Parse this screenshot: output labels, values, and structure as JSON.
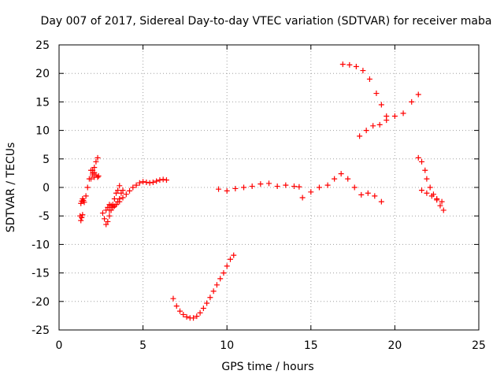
{
  "chart_data": {
    "type": "scatter",
    "title": "Day 007 of 2017, Sidereal Day-to-day VTEC variation (SDTVAR) for receiver maba",
    "xlabel": "GPS time / hours",
    "ylabel": "SDTVAR / TECUs",
    "xlim": [
      0,
      25
    ],
    "ylim": [
      -25,
      25
    ],
    "xticks": [
      "0",
      "5",
      "10",
      "15",
      "20",
      "25"
    ],
    "yticks": [
      "25",
      "20",
      "15",
      "10",
      "5",
      "0",
      "-5",
      "-10",
      "-15",
      "-20",
      "-25"
    ],
    "grid": true,
    "marker": "plus",
    "color": "#ff0000",
    "series": [
      {
        "x": [
          1.25,
          1.3,
          1.35,
          1.4
        ],
        "y": [
          -5.0,
          -5.8,
          -5.3,
          -4.8
        ]
      },
      {
        "x": [
          1.3,
          1.35,
          1.4,
          1.45,
          1.5
        ],
        "y": [
          -2.8,
          -2.4,
          -2.0,
          -2.3,
          -2.6
        ]
      },
      {
        "x": [
          1.6,
          1.7,
          1.8,
          1.9,
          2.0,
          2.1
        ],
        "y": [
          -1.5,
          0.0,
          1.5,
          3.0,
          2.2,
          1.8
        ]
      },
      {
        "x": [
          1.9,
          2.0,
          2.1,
          2.2,
          2.3
        ],
        "y": [
          1.5,
          2.5,
          3.5,
          4.5,
          5.2
        ]
      },
      {
        "x": [
          2.0,
          2.1,
          2.2,
          2.3,
          2.35
        ],
        "y": [
          3.0,
          2.6,
          2.2,
          1.8,
          2.0
        ]
      },
      {
        "x": [
          2.6,
          2.7,
          2.8,
          2.9,
          3.0,
          3.1,
          3.2,
          3.3,
          3.4,
          3.5,
          3.6
        ],
        "y": [
          -4.5,
          -5.5,
          -6.5,
          -6.0,
          -5.0,
          -4.0,
          -3.0,
          -2.0,
          -1.0,
          -0.5,
          0.3
        ]
      },
      {
        "x": [
          2.8,
          2.9,
          3.0,
          3.1,
          3.2,
          3.3,
          3.4,
          3.5,
          3.6,
          3.7,
          3.8
        ],
        "y": [
          -4.0,
          -3.5,
          -3.0,
          -3.2,
          -3.5,
          -3.3,
          -3.0,
          -2.5,
          -2.0,
          -1.0,
          -0.5
        ]
      },
      {
        "x": [
          3.0,
          3.2,
          3.4,
          3.6,
          3.8,
          4.0,
          4.2,
          4.4,
          4.6,
          4.8,
          5.0,
          5.2,
          5.4,
          5.6,
          5.8,
          6.0,
          6.2,
          6.4
        ],
        "y": [
          -4.0,
          -3.5,
          -3.0,
          -2.5,
          -1.8,
          -1.2,
          -0.6,
          0.0,
          0.4,
          0.8,
          1.0,
          0.9,
          0.8,
          0.9,
          1.1,
          1.3,
          1.4,
          1.3
        ]
      },
      {
        "x": [
          6.8,
          7.0,
          7.2,
          7.4,
          7.6,
          7.8,
          8.0,
          8.2,
          8.4,
          8.6,
          8.8,
          9.0,
          9.2,
          9.4,
          9.6,
          9.8,
          10.0,
          10.2,
          10.4
        ],
        "y": [
          -19.5,
          -20.8,
          -21.7,
          -22.3,
          -22.7,
          -22.9,
          -22.9,
          -22.6,
          -22.0,
          -21.2,
          -20.3,
          -19.3,
          -18.2,
          -17.1,
          -16.0,
          -15.0,
          -13.8,
          -12.6,
          -11.9
        ]
      },
      {
        "x": [
          9.5,
          10.0,
          10.5,
          11.0,
          11.5,
          12.0,
          12.5,
          13.0,
          13.5,
          14.0,
          14.3
        ],
        "y": [
          -0.3,
          -0.6,
          -0.2,
          0.0,
          0.2,
          0.6,
          0.7,
          0.2,
          0.4,
          0.2,
          0.1
        ]
      },
      {
        "x": [
          14.5,
          15.0,
          15.5,
          16.0,
          16.4,
          16.8,
          17.2,
          17.6,
          18.0,
          18.4,
          18.8,
          19.2
        ],
        "y": [
          -1.8,
          -0.8,
          0.0,
          0.4,
          1.5,
          2.4,
          1.5,
          0.0,
          -1.3,
          -1.0,
          -1.5,
          -2.5
        ]
      },
      {
        "x": [
          16.9,
          17.3,
          17.7,
          18.1,
          18.5,
          18.9,
          19.2,
          19.5
        ],
        "y": [
          21.6,
          21.5,
          21.2,
          20.5,
          19.0,
          16.5,
          14.5,
          12.5
        ]
      },
      {
        "x": [
          17.9,
          18.3,
          18.7,
          19.1,
          19.5,
          20.0,
          20.5,
          21.0,
          21.4
        ],
        "y": [
          9.0,
          10.0,
          10.8,
          11.0,
          11.8,
          12.5,
          13.0,
          15.0,
          16.3
        ]
      },
      {
        "x": [
          21.4,
          21.6,
          21.8,
          21.9,
          22.1,
          22.3,
          22.5,
          22.7,
          22.9
        ],
        "y": [
          5.2,
          4.5,
          3.0,
          1.5,
          0.0,
          -1.2,
          -2.2,
          -3.2,
          -4.0
        ]
      },
      {
        "x": [
          21.6,
          21.9,
          22.2,
          22.5,
          22.8
        ],
        "y": [
          -0.5,
          -1.0,
          -1.5,
          -2.0,
          -2.5
        ]
      }
    ]
  }
}
